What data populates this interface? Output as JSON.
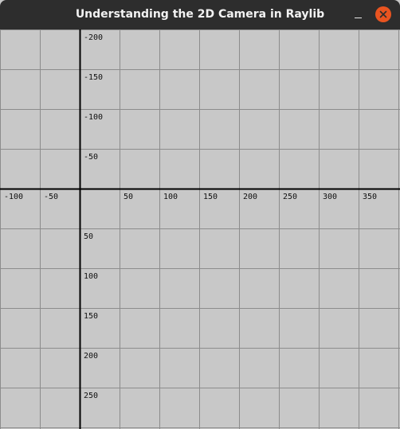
{
  "window": {
    "title": "Understanding the 2D Camera in Raylib"
  },
  "colors": {
    "titlebar": "#2d2d2d",
    "title_text": "#f2f2f2",
    "close_button": "#e95420",
    "canvas_bg": "#c8c8c8",
    "grid_line": "#8c8c8c",
    "axis_line": "#000000"
  },
  "icons": {
    "minimize": "minimize-icon",
    "close": "close-icon"
  },
  "chart_data": {
    "type": "grid",
    "grid_spacing": 50,
    "x_range": [
      -100,
      400
    ],
    "y_range": [
      -200,
      300
    ],
    "origin": [
      0,
      0
    ],
    "grid": true,
    "x_tick_labels": [
      "-100",
      "-50",
      "50",
      "100",
      "150",
      "200",
      "250",
      "300",
      "350"
    ],
    "y_tick_labels": [
      "-200",
      "-150",
      "-100",
      "-50",
      "50",
      "100",
      "150",
      "200",
      "250"
    ]
  }
}
